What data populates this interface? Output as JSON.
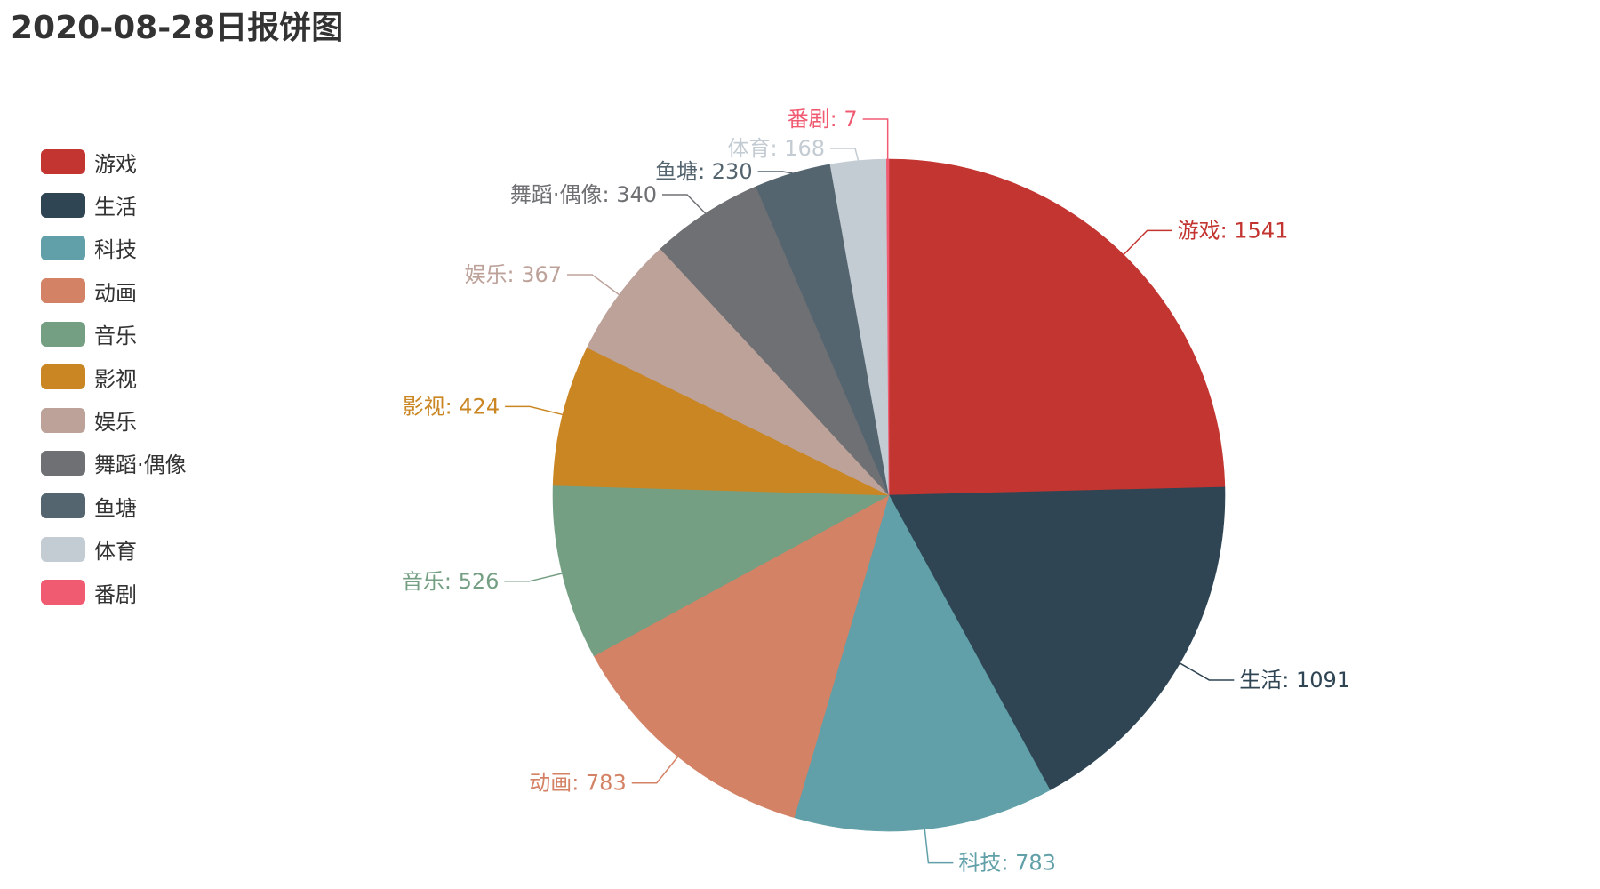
{
  "chart_data": {
    "type": "pie",
    "title": "2020-08-28日报饼图",
    "legend_position": "left",
    "slices": [
      {
        "name": "游戏",
        "value": 1541,
        "color": "#c23531"
      },
      {
        "name": "生活",
        "value": 1091,
        "color": "#2f4554"
      },
      {
        "name": "科技",
        "value": 783,
        "color": "#61a0a8"
      },
      {
        "name": "动画",
        "value": 783,
        "color": "#d48265"
      },
      {
        "name": "音乐",
        "value": 526,
        "color": "#749f83"
      },
      {
        "name": "影视",
        "value": 424,
        "color": "#ca8622"
      },
      {
        "name": "娱乐",
        "value": 367,
        "color": "#bda29a"
      },
      {
        "name": "舞蹈·偶像",
        "value": 340,
        "color": "#6e7074"
      },
      {
        "name": "鱼塘",
        "value": 230,
        "color": "#546570"
      },
      {
        "name": "体育",
        "value": 168,
        "color": "#c4ccd3"
      },
      {
        "name": "番剧",
        "value": 7,
        "color": "#f05b72"
      }
    ]
  }
}
